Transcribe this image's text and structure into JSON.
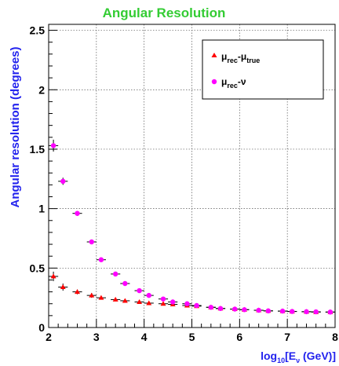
{
  "chart_data": {
    "type": "scatter",
    "title": "Angular Resolution",
    "ylabel": "Angular resolution (degrees)",
    "xlabel": {
      "main": "log",
      "sub": "10",
      "bracket": "[E",
      "nu": "ν",
      "unit": " (GeV)]"
    },
    "xlim": [
      2.0,
      8.0
    ],
    "ylim": [
      0.0,
      2.55
    ],
    "x_ticks": [
      "2",
      "3",
      "4",
      "5",
      "6",
      "7",
      "8"
    ],
    "y_ticks": [
      "0",
      "0.5",
      "1",
      "1.5",
      "2",
      "2.5"
    ],
    "grid": true,
    "legend_position": "top-right",
    "x": [
      2.1,
      2.3,
      2.6,
      2.9,
      3.1,
      3.4,
      3.6,
      3.9,
      4.1,
      4.4,
      4.6,
      4.9,
      5.1,
      5.4,
      5.6,
      5.9,
      6.1,
      6.4,
      6.6,
      6.9,
      7.1,
      7.4,
      7.6,
      7.9
    ],
    "x_err": 0.1,
    "series": [
      {
        "name": {
          "base": "μ",
          "sub1": "rec",
          "mid": "-μ",
          "sub2": "true"
        },
        "marker": "triangle",
        "color": "#ff0000",
        "values": [
          0.43,
          0.34,
          0.3,
          0.27,
          0.25,
          0.235,
          0.225,
          0.215,
          0.205,
          0.2,
          0.195,
          0.185,
          0.18,
          0.17,
          0.16,
          0.155,
          0.15,
          0.145,
          0.14,
          0.138,
          0.135,
          0.133,
          0.13,
          0.13
        ],
        "y_err": [
          0.04,
          0.03,
          0.02,
          0.02,
          0.015,
          0.01,
          0.01,
          0.01,
          0.01,
          0.01,
          0.01,
          0.01,
          0.01,
          0.01,
          0.01,
          0.01,
          0.01,
          0.01,
          0.01,
          0.01,
          0.01,
          0.01,
          0.01,
          0.01
        ]
      },
      {
        "name": {
          "base": "μ",
          "sub1": "rec",
          "mid": "-ν",
          "sub2": ""
        },
        "marker": "circle",
        "color": "#ff00ff",
        "values": [
          1.53,
          1.23,
          0.96,
          0.72,
          0.57,
          0.45,
          0.37,
          0.31,
          0.27,
          0.24,
          0.215,
          0.2,
          0.185,
          0.17,
          0.16,
          0.155,
          0.15,
          0.145,
          0.14,
          0.138,
          0.135,
          0.133,
          0.132,
          0.13
        ],
        "y_err": [
          0.05,
          0.03,
          0.02,
          0.015,
          0.01,
          0.01,
          0.01,
          0.01,
          0.01,
          0.01,
          0.01,
          0.01,
          0.01,
          0.01,
          0.01,
          0.01,
          0.01,
          0.01,
          0.01,
          0.01,
          0.01,
          0.01,
          0.01,
          0.01
        ]
      }
    ]
  }
}
